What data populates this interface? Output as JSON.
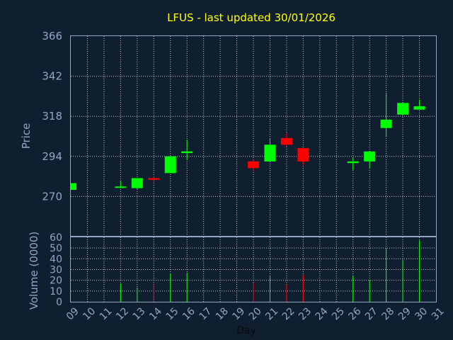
{
  "chart_data": {
    "type": "candlestick",
    "title": "LFUS - last updated 30/01/2026",
    "xlabel": "Day",
    "ylabel": "Price",
    "volume_label": "Volume (0000)",
    "x_ticks": [
      "09",
      "10",
      "11",
      "12",
      "13",
      "14",
      "15",
      "16",
      "17",
      "18",
      "19",
      "20",
      "21",
      "22",
      "23",
      "24",
      "25",
      "26",
      "27",
      "28",
      "29",
      "30",
      "31"
    ],
    "price_ticks": [
      270,
      294,
      318,
      342,
      366
    ],
    "price_range": [
      246,
      366
    ],
    "volume_ticks": [
      0,
      10,
      20,
      30,
      40,
      50,
      60
    ],
    "volume_range": [
      0,
      60
    ],
    "grid": true,
    "colors": {
      "up": "#00ff00",
      "down": "#ff0000",
      "title": "#ffff00",
      "background": "#0f1f30",
      "axis_text": "#8fa7c4"
    },
    "candles": [
      {
        "day": "09",
        "open": 274,
        "high": 278,
        "low": 274,
        "close": 278,
        "volume": 0
      },
      {
        "day": "12",
        "open": 276,
        "high": 279,
        "low": 275,
        "close": 276,
        "volume": 17
      },
      {
        "day": "13",
        "open": 275,
        "high": 281,
        "low": 274,
        "close": 281,
        "volume": 13
      },
      {
        "day": "14",
        "open": 281,
        "high": 282,
        "low": 278,
        "close": 280,
        "volume": 17
      },
      {
        "day": "15",
        "open": 284,
        "high": 294,
        "low": 284,
        "close": 294,
        "volume": 26
      },
      {
        "day": "16",
        "open": 296,
        "high": 304,
        "low": 292,
        "close": 297,
        "volume": 27
      },
      {
        "day": "20",
        "open": 291,
        "high": 292,
        "low": 285,
        "close": 287,
        "volume": 18
      },
      {
        "day": "21",
        "open": 291,
        "high": 305,
        "low": 291,
        "close": 301,
        "volume": 24
      },
      {
        "day": "22",
        "open": 305,
        "high": 308,
        "low": 300,
        "close": 301,
        "volume": 16
      },
      {
        "day": "23",
        "open": 299,
        "high": 299,
        "low": 289,
        "close": 291,
        "volume": 25
      },
      {
        "day": "26",
        "open": 290,
        "high": 293,
        "low": 286,
        "close": 291,
        "volume": 24
      },
      {
        "day": "27",
        "open": 291,
        "high": 297,
        "low": 287,
        "close": 297,
        "volume": 20
      },
      {
        "day": "28",
        "open": 311,
        "high": 332,
        "low": 306,
        "close": 316,
        "volume": 50
      },
      {
        "day": "29",
        "open": 319,
        "high": 326,
        "low": 319,
        "close": 326,
        "volume": 39
      },
      {
        "day": "30",
        "open": 322,
        "high": 328,
        "low": 322,
        "close": 324,
        "volume": 57
      }
    ]
  }
}
